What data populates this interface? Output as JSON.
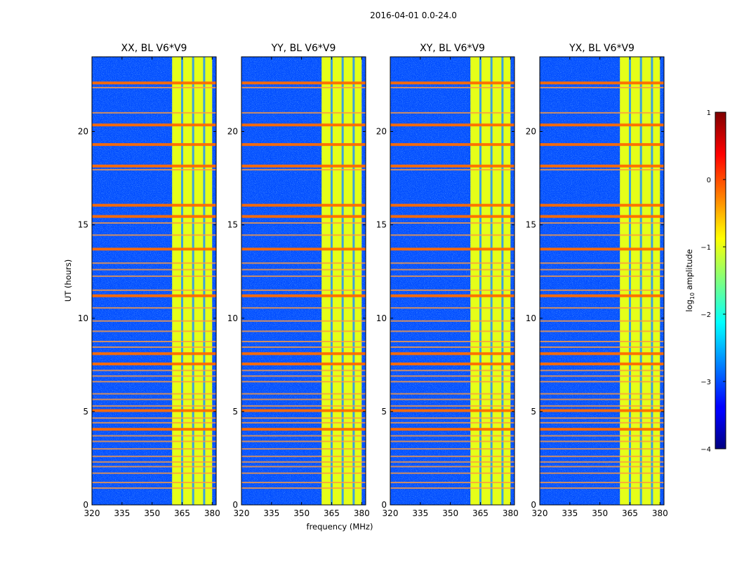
{
  "chart_data": {
    "type": "heatmap",
    "suptitle": "2016-04-01 0.0-24.0",
    "xlabel": "frequency (MHz)",
    "ylabel": "UT (hours)",
    "xlim": [
      320,
      382
    ],
    "ylim": [
      0,
      24
    ],
    "xticks": [
      320,
      335,
      350,
      365,
      380
    ],
    "yticks": [
      0,
      5,
      10,
      15,
      20
    ],
    "panels": [
      {
        "title": "XX, BL V6*V9"
      },
      {
        "title": "YY, BL V6*V9"
      },
      {
        "title": "XY, BL V6*V9"
      },
      {
        "title": "YX, BL V6*V9"
      }
    ],
    "colorbar": {
      "label": "log10 amplitude",
      "label_base": "log",
      "label_sub": "10",
      "label_rest": " amplitude",
      "range": [
        -4,
        1
      ],
      "ticks": [
        1,
        0,
        -1,
        -2,
        -3,
        -4
      ],
      "tick_labels": [
        "1",
        "0",
        "−1",
        "−2",
        "−3",
        "−4"
      ],
      "colormap": [
        "#00007f",
        "#0000ff",
        "#007fff",
        "#00ffff",
        "#7fff7f",
        "#ffff00",
        "#ff7f00",
        "#ff0000",
        "#7f0000"
      ]
    },
    "description": {
      "background_level": -3,
      "high_band_mhz": [
        360,
        380
      ],
      "high_band_level": -1,
      "interference_rows_ut": [
        0.9,
        1.2,
        1.7,
        2.05,
        2.3,
        2.6,
        3.0,
        3.4,
        3.7,
        4.05,
        4.4,
        4.65,
        5.05,
        5.3,
        5.65,
        5.95,
        6.6,
        6.9,
        7.2,
        7.55,
        8.1,
        8.45,
        8.75,
        9.3,
        9.85,
        10.55,
        11.2,
        11.5,
        12.25,
        12.6,
        12.95,
        13.7,
        14.45,
        15.1,
        15.45,
        16.05,
        17.95,
        18.15,
        19.3,
        20.35,
        21.0,
        22.35,
        22.6
      ],
      "strong_rows_ut": [
        4.05,
        5.05,
        7.55,
        8.1,
        11.2,
        13.7,
        15.45,
        16.05,
        18.15,
        19.3,
        20.35,
        22.6
      ]
    }
  }
}
